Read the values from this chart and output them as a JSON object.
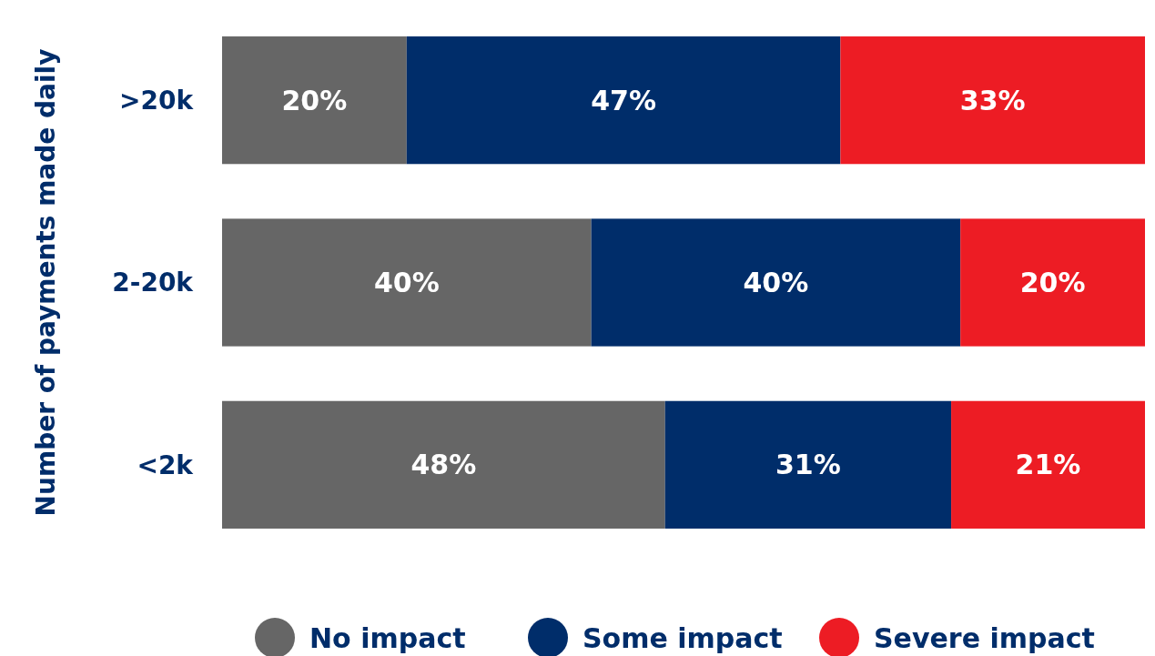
{
  "chart_data": {
    "type": "bar",
    "orientation": "horizontal",
    "stacked": true,
    "ylabel": "Number of payments made daily",
    "categories": [
      ">20k",
      "2-20k",
      "<2k"
    ],
    "xlim": [
      0,
      100
    ],
    "tick_labels": "y",
    "legend": "bottom",
    "series": [
      {
        "name": "No impact",
        "color": "#666666",
        "values": [
          20,
          40,
          48
        ],
        "value_labels": [
          "20%",
          "40%",
          "48%"
        ]
      },
      {
        "name": "Some impact",
        "color": "#002d6a",
        "values": [
          47,
          40,
          31
        ],
        "value_labels": [
          "47%",
          "40%",
          "31%"
        ]
      },
      {
        "name": "Severe impact",
        "color": "#ed1c24",
        "values": [
          33,
          20,
          21
        ],
        "value_labels": [
          "33%",
          "20%",
          "21%"
        ]
      }
    ]
  }
}
